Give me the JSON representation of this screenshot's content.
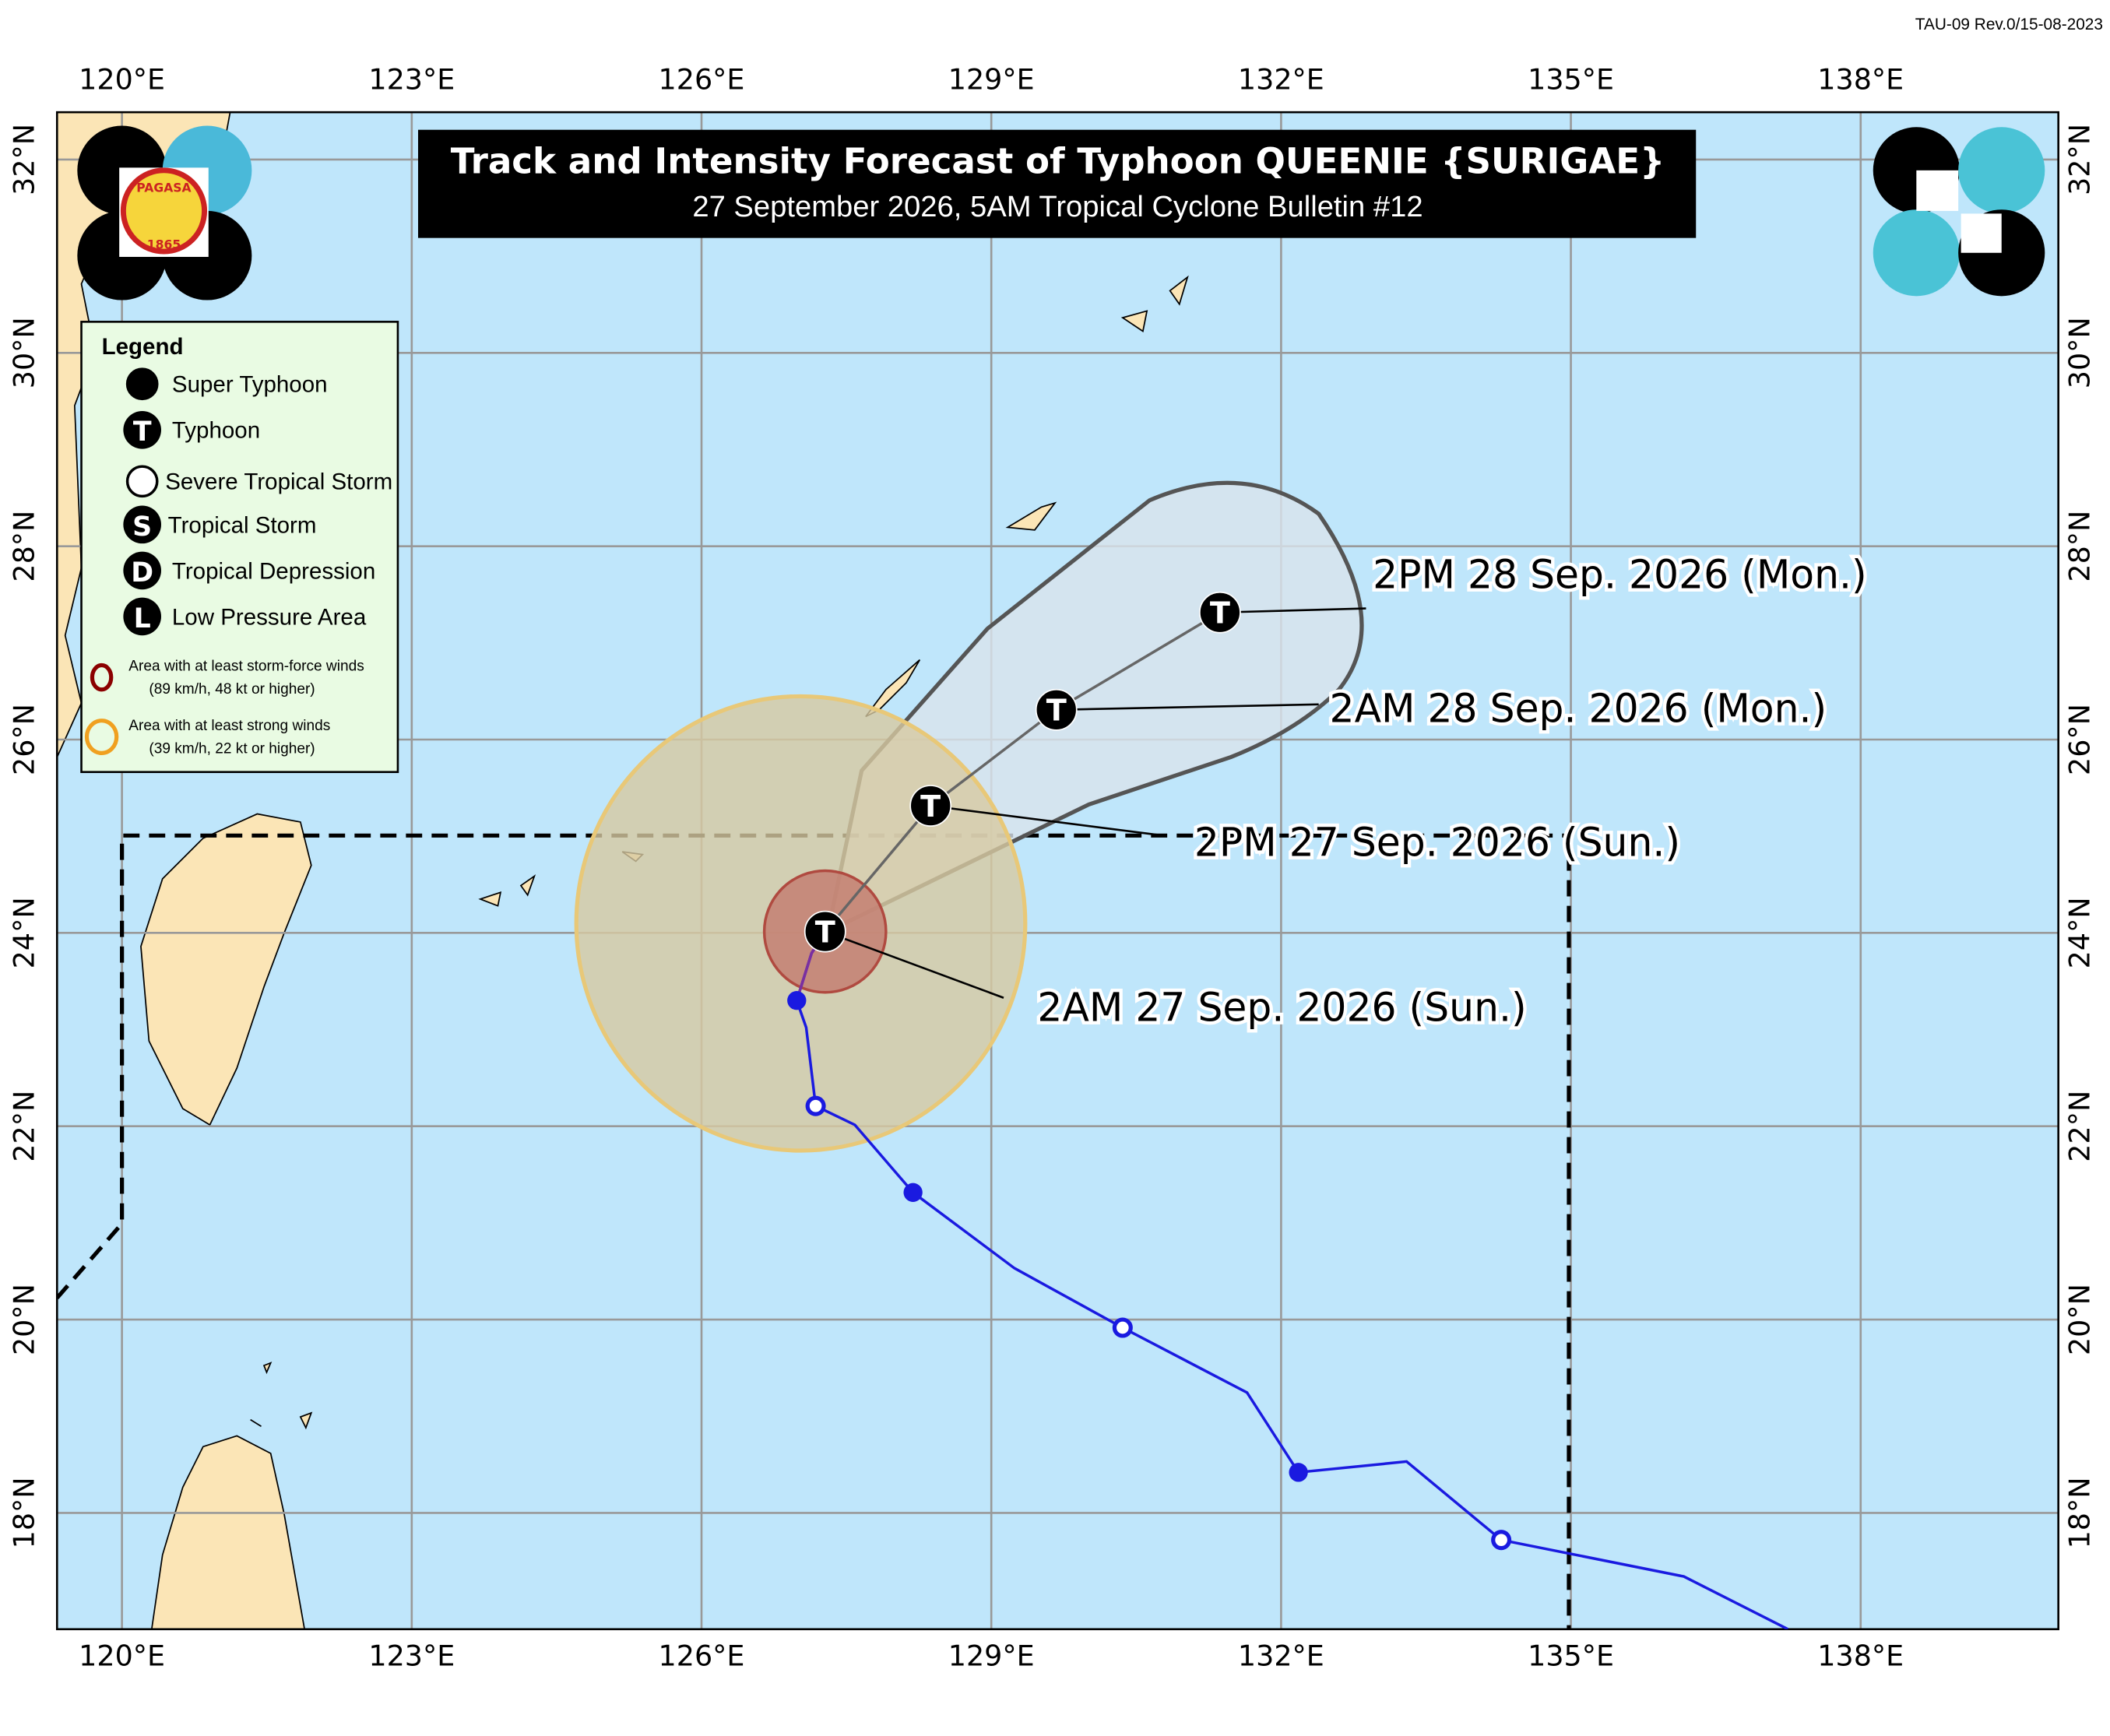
{
  "revision": "TAU-09 Rev.0/15-08-2023",
  "header": {
    "title": "Track and Intensity Forecast of Typhoon QUEENIE {SURIGAE}",
    "subtitle": "27 September 2026, 5AM Tropical Cyclone Bulletin #12"
  },
  "logo": {
    "name": "PAGASA",
    "year": "1865"
  },
  "longitudes": [
    "120°E",
    "123°E",
    "126°E",
    "129°E",
    "132°E",
    "135°E",
    "138°E"
  ],
  "latitudes": [
    "32°N",
    "30°N",
    "28°N",
    "26°N",
    "24°N",
    "22°N",
    "20°N",
    "18°N"
  ],
  "legend": {
    "title": "Legend",
    "items": [
      {
        "symbol": "",
        "label": "Super Typhoon"
      },
      {
        "symbol": "T",
        "label": "Typhoon"
      },
      {
        "symbol": "",
        "label": "Severe Tropical Storm"
      },
      {
        "symbol": "S",
        "label": "Tropical Storm"
      },
      {
        "symbol": "D",
        "label": "Tropical Depression"
      },
      {
        "symbol": "L",
        "label": "Low Pressure Area"
      }
    ],
    "areas": [
      {
        "label": "Area with at least storm-force winds",
        "detail": "(89 km/h, 48 kt or higher)"
      },
      {
        "label": "Area with at least strong winds",
        "detail": "(39 km/h, 22 kt or higher)"
      }
    ]
  },
  "forecast": [
    {
      "symbol": "T",
      "label": "2AM 27 Sep. 2026 (Sun.)"
    },
    {
      "symbol": "T",
      "label": "2PM 27 Sep. 2026 (Sun.)"
    },
    {
      "symbol": "T",
      "label": "2AM 28 Sep. 2026 (Mon.)"
    },
    {
      "symbol": "T",
      "label": "2PM 28 Sep. 2026 (Mon.)"
    }
  ]
}
